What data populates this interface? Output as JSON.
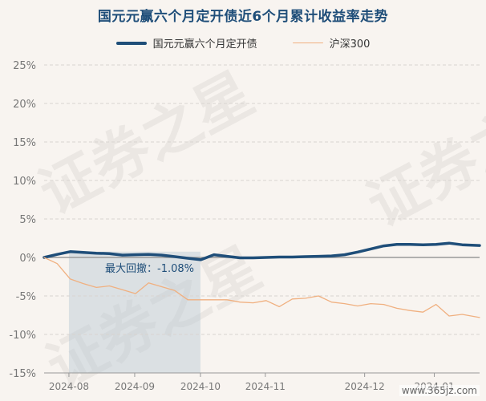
{
  "chart_data": {
    "type": "line",
    "title": "国元元赢六个月定开债近6个月累计收益率走势",
    "xlabel": "",
    "ylabel": "",
    "ylim": [
      -15,
      25
    ],
    "yticks": [
      25,
      20,
      15,
      10,
      5,
      0,
      -5,
      -10,
      -15
    ],
    "ytick_labels": [
      "25%",
      "20%",
      "15%",
      "10%",
      "5%",
      "0%",
      "-5%",
      "-10%",
      "-15%"
    ],
    "xtick_labels": [
      "2024-08",
      "2024-09",
      "2024-10",
      "2024-11",
      "2024-12",
      "2024-01"
    ],
    "x_range": [
      0,
      100
    ],
    "xtick_positions": [
      5.7,
      20.8,
      35.9,
      50.8,
      73.6,
      89.6
    ],
    "grid": true,
    "legend_position": "top-center",
    "series": [
      {
        "name": "国元元赢六个月定开债",
        "color": "#1f4e79",
        "x": [
          0,
          3,
          6,
          9,
          12,
          15,
          18,
          21,
          24,
          27,
          30,
          33,
          36,
          39,
          42,
          45,
          48,
          51,
          54,
          57,
          60,
          63,
          66,
          69,
          72,
          75,
          78,
          81,
          84,
          87,
          90,
          93,
          96,
          100
        ],
        "values": [
          0,
          0.4,
          0.75,
          0.65,
          0.55,
          0.5,
          0.3,
          0.35,
          0.4,
          0.3,
          0.1,
          -0.1,
          -0.3,
          0.35,
          0.15,
          -0.05,
          -0.05,
          0.0,
          0.05,
          0.05,
          0.1,
          0.15,
          0.2,
          0.35,
          0.7,
          1.1,
          1.5,
          1.7,
          1.7,
          1.65,
          1.7,
          1.85,
          1.65,
          1.55
        ]
      },
      {
        "name": "沪深300",
        "color": "#f0b080",
        "x": [
          0,
          3,
          6,
          9,
          12,
          15,
          18,
          21,
          24,
          27,
          30,
          33,
          36,
          39,
          42,
          45,
          48,
          51,
          54,
          57,
          60,
          63,
          66,
          69,
          72,
          75,
          78,
          81,
          84,
          87,
          90,
          93,
          96,
          100
        ],
        "values": [
          0,
          -0.8,
          -2.8,
          -3.4,
          -3.9,
          -3.7,
          -4.2,
          -4.7,
          -3.3,
          -3.8,
          -4.3,
          -5.5,
          -5.5,
          -5.5,
          -5.5,
          -5.8,
          -5.9,
          -5.6,
          -6.4,
          -5.4,
          -5.3,
          -5.0,
          -5.8,
          -6.0,
          -6.3,
          -6.0,
          -6.1,
          -6.6,
          -6.9,
          -7.1,
          -6.1,
          -7.6,
          -7.4,
          -7.8
        ]
      }
    ],
    "annotation": {
      "text": "最大回撤：-1.08%",
      "shaded_x": [
        5.7,
        35.9
      ]
    }
  },
  "watermark": {
    "text": "证券之星",
    "site": "www.365jz.com"
  }
}
